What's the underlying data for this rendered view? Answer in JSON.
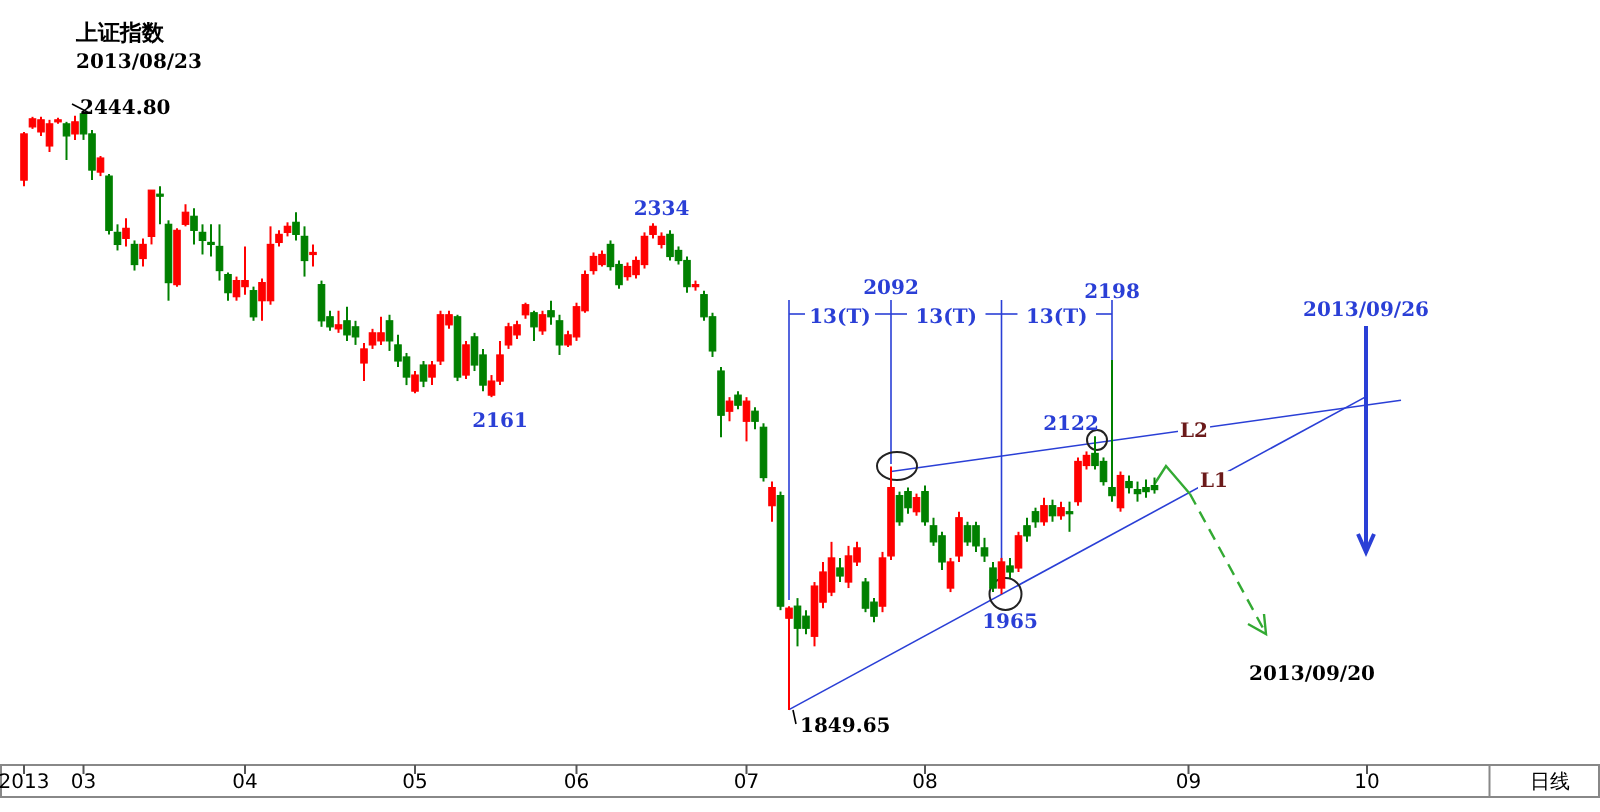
{
  "chart_data": {
    "type": "candlestick",
    "title": "上证指数",
    "subtitle": "2013/08/23",
    "categories": [
      "2013",
      null,
      null,
      null,
      null,
      null,
      null,
      "03",
      null,
      null,
      null,
      null,
      null,
      null,
      null,
      null,
      null,
      null,
      null,
      null,
      null,
      null,
      null,
      null,
      null,
      null,
      "04",
      null,
      null,
      null,
      null,
      null,
      null,
      null,
      null,
      null,
      null,
      null,
      null,
      null,
      null,
      null,
      null,
      null,
      null,
      null,
      "05",
      null,
      null,
      null,
      null,
      null,
      null,
      null,
      null,
      null,
      null,
      null,
      null,
      null,
      null,
      null,
      null,
      null,
      null,
      "06",
      null,
      null,
      null,
      null,
      null,
      null,
      null,
      null,
      null,
      null,
      null,
      null,
      null,
      null,
      null,
      null,
      null,
      null,
      null,
      "07",
      null,
      null,
      null,
      null,
      null,
      null,
      null,
      null,
      null,
      null,
      null,
      null,
      null,
      null,
      null,
      null,
      null,
      null,
      null,
      null,
      "08",
      null,
      null,
      null,
      null,
      null,
      null,
      null,
      null,
      null,
      null,
      null,
      null,
      null,
      null,
      null,
      null,
      null,
      null,
      null,
      null,
      null,
      null,
      null,
      null,
      null,
      null,
      null,
      null,
      null,
      null,
      "09",
      null,
      null,
      null,
      null,
      null,
      null,
      null,
      null,
      null,
      null,
      null,
      null,
      null,
      null,
      null,
      null,
      null,
      null,
      null,
      null,
      "10",
      null,
      null,
      null,
      null,
      null,
      null,
      null,
      null,
      null,
      null,
      null,
      null,
      null
    ],
    "ohlc": [
      [
        2377,
        2425,
        2371,
        2423
      ],
      [
        2430,
        2440,
        2428,
        2438
      ],
      [
        2425,
        2440,
        2421,
        2437
      ],
      [
        2411,
        2437,
        2405,
        2433
      ],
      [
        2435,
        2439,
        2433,
        2437
      ],
      [
        2433,
        2435,
        2397,
        2421
      ],
      [
        2423,
        2441,
        2417,
        2435
      ],
      [
        2443,
        2444.8,
        2417,
        2423
      ],
      [
        2423,
        2427,
        2377,
        2387
      ],
      [
        2385,
        2401,
        2381,
        2399
      ],
      [
        2381,
        2383,
        2323,
        2327
      ],
      [
        2325,
        2333,
        2307,
        2313
      ],
      [
        2319,
        2339,
        2311,
        2329
      ],
      [
        2313,
        2317,
        2287,
        2293
      ],
      [
        2299,
        2319,
        2291,
        2313
      ],
      [
        2321,
        2367,
        2313,
        2367
      ],
      [
        2363,
        2371,
        2333,
        2361
      ],
      [
        2333,
        2337,
        2257,
        2275
      ],
      [
        2273,
        2329,
        2271,
        2327
      ],
      [
        2333,
        2353,
        2331,
        2345
      ],
      [
        2341,
        2349,
        2313,
        2327
      ],
      [
        2325,
        2333,
        2303,
        2317
      ],
      [
        2315,
        2333,
        2301,
        2313
      ],
      [
        2311,
        2333,
        2277,
        2287
      ],
      [
        2283,
        2285,
        2257,
        2265
      ],
      [
        2261,
        2281,
        2257,
        2277
      ],
      [
        2271,
        2311,
        2263,
        2277
      ],
      [
        2267,
        2271,
        2237,
        2241
      ],
      [
        2257,
        2279,
        2237,
        2275
      ],
      [
        2257,
        2331,
        2253,
        2313
      ],
      [
        2315,
        2327,
        2311,
        2323
      ],
      [
        2325,
        2335,
        2321,
        2331
      ],
      [
        2335,
        2345,
        2317,
        2323
      ],
      [
        2321,
        2331,
        2281,
        2297
      ],
      [
        2303,
        2313,
        2291,
        2305
      ],
      [
        2273,
        2277,
        2231,
        2237
      ],
      [
        2241,
        2247,
        2227,
        2231
      ],
      [
        2229,
        2247,
        2225,
        2233
      ],
      [
        2237,
        2251,
        2217,
        2223
      ],
      [
        2231,
        2237,
        2213,
        2221
      ],
      [
        2195,
        2215,
        2177,
        2209
      ],
      [
        2213,
        2229,
        2209,
        2225
      ],
      [
        2217,
        2241,
        2213,
        2225
      ],
      [
        2237,
        2243,
        2207,
        2217
      ],
      [
        2213,
        2223,
        2191,
        2197
      ],
      [
        2201,
        2205,
        2173,
        2181
      ],
      [
        2167,
        2187,
        2165,
        2183
      ],
      [
        2193,
        2197,
        2171,
        2177
      ],
      [
        2181,
        2197,
        2173,
        2193
      ],
      [
        2197,
        2247,
        2193,
        2243
      ],
      [
        2233,
        2247,
        2229,
        2243
      ],
      [
        2241,
        2243,
        2177,
        2181
      ],
      [
        2183,
        2217,
        2179,
        2213
      ],
      [
        2221,
        2225,
        2187,
        2193
      ],
      [
        2203,
        2209,
        2167,
        2173
      ],
      [
        2163,
        2183,
        2161,
        2177
      ],
      [
        2177,
        2217,
        2173,
        2203
      ],
      [
        2213,
        2235,
        2209,
        2231
      ],
      [
        2223,
        2237,
        2219,
        2233
      ],
      [
        2243,
        2255,
        2239,
        2253
      ],
      [
        2245,
        2247,
        2217,
        2231
      ],
      [
        2227,
        2247,
        2223,
        2243
      ],
      [
        2247,
        2257,
        2233,
        2241
      ],
      [
        2237,
        2243,
        2203,
        2213
      ],
      [
        2213,
        2227,
        2211,
        2223
      ],
      [
        2221,
        2255,
        2217,
        2251
      ],
      [
        2247,
        2287,
        2245,
        2283
      ],
      [
        2287,
        2305,
        2283,
        2301
      ],
      [
        2293,
        2307,
        2291,
        2303
      ],
      [
        2313,
        2317,
        2287,
        2291
      ],
      [
        2293,
        2297,
        2269,
        2273
      ],
      [
        2281,
        2295,
        2277,
        2291
      ],
      [
        2283,
        2301,
        2279,
        2297
      ],
      [
        2293,
        2325,
        2289,
        2321
      ],
      [
        2323,
        2334,
        2319,
        2331
      ],
      [
        2313,
        2325,
        2309,
        2321
      ],
      [
        2323,
        2327,
        2297,
        2301
      ],
      [
        2307,
        2311,
        2293,
        2297
      ],
      [
        2297,
        2301,
        2265,
        2271
      ],
      [
        2271,
        2277,
        2267,
        2273
      ],
      [
        2263,
        2267,
        2237,
        2241
      ],
      [
        2241,
        2245,
        2201,
        2207
      ],
      [
        2187,
        2191,
        2121,
        2143
      ],
      [
        2147,
        2161,
        2137,
        2157
      ],
      [
        2163,
        2167,
        2149,
        2153
      ],
      [
        2137,
        2161,
        2117,
        2157
      ],
      [
        2147,
        2151,
        2129,
        2137
      ],
      [
        2131,
        2135,
        2077,
        2081
      ],
      [
        2053,
        2077,
        2037,
        2071
      ],
      [
        2063,
        2067,
        1949,
        1953
      ],
      [
        1941,
        1953,
        1849.65,
        1951
      ],
      [
        1953,
        1961,
        1913,
        1931
      ],
      [
        1943,
        1949,
        1925,
        1931
      ],
      [
        1923,
        1977,
        1913,
        1973
      ],
      [
        1957,
        1997,
        1951,
        1987
      ],
      [
        1967,
        2017,
        1963,
        2001
      ],
      [
        1991,
        2001,
        1977,
        1983
      ],
      [
        1977,
        2013,
        1971,
        2003
      ],
      [
        1997,
        2017,
        1993,
        2011
      ],
      [
        1977,
        1981,
        1947,
        1951
      ],
      [
        1957,
        1961,
        1937,
        1943
      ],
      [
        1953,
        2007,
        1947,
        2001
      ],
      [
        2003,
        2092,
        1999,
        2071
      ],
      [
        2063,
        2067,
        2033,
        2037
      ],
      [
        2067,
        2071,
        2045,
        2051
      ],
      [
        2047,
        2065,
        2043,
        2061
      ],
      [
        2067,
        2073,
        2033,
        2037
      ],
      [
        2033,
        2041,
        2013,
        2017
      ],
      [
        2023,
        2027,
        1989,
        1997
      ],
      [
        1971,
        2001,
        1967,
        1997
      ],
      [
        2003,
        2047,
        1997,
        2041
      ],
      [
        2033,
        2037,
        2013,
        2017
      ],
      [
        2033,
        2037,
        2007,
        2013
      ],
      [
        2011,
        2021,
        1997,
        2003
      ],
      [
        1991,
        1997,
        1967,
        1971
      ],
      [
        1971,
        2001,
        1965,
        1997
      ],
      [
        1993,
        2001,
        1981,
        1987
      ],
      [
        1991,
        2027,
        1987,
        2023
      ],
      [
        2033,
        2041,
        2017,
        2023
      ],
      [
        2047,
        2051,
        2031,
        2037
      ],
      [
        2037,
        2061,
        2033,
        2053
      ],
      [
        2053,
        2059,
        2037,
        2043
      ],
      [
        2043,
        2057,
        2039,
        2051
      ],
      [
        2047,
        2057,
        2027,
        2045
      ],
      [
        2057,
        2101,
        2053,
        2097
      ],
      [
        2093,
        2107,
        2089,
        2103
      ],
      [
        2105,
        2122,
        2089,
        2093
      ],
      [
        2097,
        2101,
        2073,
        2077
      ],
      [
        2071,
        2198,
        2057,
        2063
      ],
      [
        2051,
        2087,
        2047,
        2083
      ],
      [
        2077,
        2083,
        2065,
        2071
      ],
      [
        2069,
        2077,
        2057,
        2065
      ],
      [
        2071,
        2079,
        2061,
        2067
      ],
      [
        2073,
        2081,
        2065,
        2069
      ],
      null,
      null,
      null,
      null,
      null,
      null,
      null,
      null,
      null,
      null,
      null,
      null,
      null,
      null,
      null,
      null,
      null,
      null,
      null,
      null,
      null,
      null,
      null,
      null,
      null,
      null,
      null,
      null,
      null,
      null,
      null,
      null,
      null,
      null,
      null,
      null,
      null,
      null
    ],
    "colors": [
      "#ff0000",
      "#ff0000",
      "#ff0000",
      "#ff0000",
      "#ff0000",
      "#008000",
      "#ff0000",
      "#008000",
      "#008000",
      "#ff0000",
      "#008000",
      "#008000",
      "#ff0000",
      "#008000",
      "#ff0000",
      "#ff0000",
      "#008000",
      "#008000",
      "#ff0000",
      "#ff0000",
      "#008000",
      "#008000",
      "#008000",
      "#008000",
      "#008000",
      "#ff0000",
      "#ff0000",
      "#008000",
      "#ff0000",
      "#ff0000",
      "#ff0000",
      "#ff0000",
      "#008000",
      "#008000",
      "#ff0000",
      "#008000",
      "#008000",
      "#ff0000",
      "#008000",
      "#008000",
      "#ff0000",
      "#ff0000",
      "#ff0000",
      "#008000",
      "#008000",
      "#008000",
      "#ff0000",
      "#008000",
      "#ff0000",
      "#ff0000",
      "#ff0000",
      "#008000",
      "#ff0000",
      "#008000",
      "#008000",
      "#ff0000",
      "#ff0000",
      "#ff0000",
      "#ff0000",
      "#ff0000",
      "#008000",
      "#ff0000",
      "#008000",
      "#008000",
      "#ff0000",
      "#ff0000",
      "#ff0000",
      "#ff0000",
      "#ff0000",
      "#008000",
      "#008000",
      "#ff0000",
      "#ff0000",
      "#ff0000",
      "#ff0000",
      "#ff0000",
      "#008000",
      "#008000",
      "#008000",
      "#ff0000",
      "#008000",
      "#008000",
      "#008000",
      "#ff0000",
      "#008000",
      "#ff0000",
      "#008000",
      "#008000",
      "#ff0000",
      "#008000",
      "#ff0000",
      "#008000",
      "#008000",
      "#ff0000",
      "#ff0000",
      "#ff0000",
      "#008000",
      "#ff0000",
      "#ff0000",
      "#008000",
      "#008000",
      "#ff0000",
      "#ff0000",
      "#008000",
      "#008000",
      "#ff0000",
      "#008000",
      "#008000",
      "#008000",
      "#ff0000",
      "#ff0000",
      "#008000",
      "#008000",
      "#008000",
      "#008000",
      "#ff0000",
      "#008000",
      "#ff0000",
      "#008000",
      "#008000",
      "#ff0000",
      "#008000",
      "#ff0000",
      "#008000",
      "#ff0000",
      "#ff0000",
      "#008000",
      "#008000",
      "#008000",
      "#ff0000",
      "#008000",
      "#008000",
      "#008000",
      "#008000",
      null,
      null,
      null,
      null,
      null,
      null,
      null,
      null,
      null,
      null,
      null,
      null,
      null,
      null,
      null,
      null,
      null,
      null,
      null,
      null,
      null,
      null,
      null,
      null,
      null,
      null,
      null,
      null,
      null,
      null,
      null,
      null,
      null,
      null,
      null,
      null,
      null,
      null
    ],
    "series": [
      {
        "name": "L1",
        "type": "line",
        "color": "#2a3fd6",
        "values": [
          null,
          null,
          null,
          null,
          null,
          null,
          null,
          null,
          null,
          null,
          null,
          null,
          null,
          null,
          null,
          null,
          null,
          null,
          null,
          null,
          null,
          null,
          null,
          null,
          null,
          null,
          null,
          null,
          null,
          null,
          null,
          null,
          null,
          null,
          null,
          null,
          null,
          null,
          null,
          null,
          null,
          null,
          null,
          null,
          null,
          null,
          null,
          null,
          null,
          null,
          null,
          null,
          null,
          null,
          null,
          null,
          null,
          null,
          null,
          null,
          null,
          null,
          null,
          null,
          null,
          null,
          null,
          null,
          null,
          null,
          null,
          null,
          null,
          null,
          null,
          null,
          null,
          null,
          null,
          null,
          null,
          null,
          null,
          null,
          null,
          null,
          null,
          null,
          null,
          null,
          1850,
          null,
          null,
          null,
          null,
          null,
          null,
          null,
          null,
          null,
          null,
          null,
          null,
          null,
          null,
          null,
          null,
          null,
          null,
          null,
          null,
          null,
          null,
          null,
          null,
          null,
          null,
          null,
          null,
          null,
          null,
          null,
          null,
          null,
          null,
          null,
          null,
          null,
          null,
          null,
          null,
          null,
          null,
          null,
          null,
          null,
          null,
          null,
          null,
          null,
          null,
          null,
          null,
          null,
          null,
          null,
          null,
          null,
          null,
          null,
          null,
          null,
          null,
          null,
          null,
          null,
          null,
          null,
          2162,
          null,
          null,
          null,
          null,
          null,
          null,
          null,
          null,
          null,
          null,
          null,
          null,
          null
        ]
      },
      {
        "name": "L2",
        "type": "line",
        "color": "#2a3fd6",
        "values": [
          null,
          null,
          null,
          null,
          null,
          null,
          null,
          null,
          null,
          null,
          null,
          null,
          null,
          null,
          null,
          null,
          null,
          null,
          null,
          null,
          null,
          null,
          null,
          null,
          null,
          null,
          null,
          null,
          null,
          null,
          null,
          null,
          null,
          null,
          null,
          null,
          null,
          null,
          null,
          null,
          null,
          null,
          null,
          null,
          null,
          null,
          null,
          null,
          null,
          null,
          null,
          null,
          null,
          null,
          null,
          null,
          null,
          null,
          null,
          null,
          null,
          null,
          null,
          null,
          null,
          null,
          null,
          null,
          null,
          null,
          null,
          null,
          null,
          null,
          null,
          null,
          null,
          null,
          null,
          null,
          null,
          null,
          null,
          null,
          null,
          null,
          null,
          null,
          null,
          null,
          null,
          null,
          null,
          null,
          null,
          null,
          null,
          null,
          null,
          null,
          null,
          null,
          2087,
          null,
          null,
          null,
          null,
          null,
          null,
          null,
          null,
          null,
          null,
          null,
          null,
          null,
          null,
          null,
          null,
          null,
          null,
          null,
          null,
          null,
          null,
          null,
          null,
          null,
          null,
          null,
          null,
          null,
          null,
          null,
          null,
          null,
          null,
          null,
          null,
          null,
          null,
          null,
          null,
          null,
          null,
          null,
          null,
          null,
          null,
          null,
          null,
          null,
          null,
          null,
          null,
          null,
          null,
          null,
          null,
          null,
          null,
          null,
          2158,
          null,
          null,
          null,
          null,
          null,
          null,
          null,
          null,
          null
        ]
      }
    ],
    "annotations": [
      "2444.80",
      {
        "text": "2334",
        "y": 2334
      },
      {
        "text": "2161",
        "y": 2161
      },
      "1849.65",
      {
        "text": "2092",
        "y": 2092
      },
      {
        "text": "2198",
        "y": 2198
      },
      "1965",
      "2122",
      {
        "text": "13(T)",
        "y": 2243
      },
      {
        "text": "13(T)",
        "y": 2243
      },
      {
        "text": "13(T)",
        "y": 2243
      },
      "2013/09/26",
      "2013/09/20",
      "日线"
    ]
  }
}
